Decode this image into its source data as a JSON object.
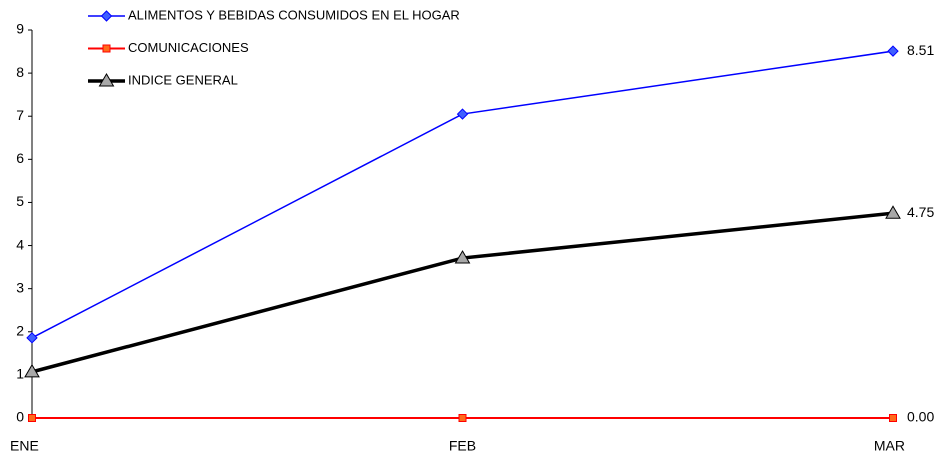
{
  "chart_data": {
    "type": "line",
    "categories": [
      "ENE",
      "FEB",
      "MAR"
    ],
    "series": [
      {
        "name": "ALIMENTOS Y BEBIDAS CONSUMIDOS EN EL HOGAR",
        "color": "#0000ff",
        "marker": "diamond",
        "values": [
          1.86,
          7.05,
          8.51
        ],
        "value_labels": [
          null,
          null,
          "8.51"
        ]
      },
      {
        "name": "COMUNICACIONES",
        "color": "#ff0000",
        "marker": "square",
        "values": [
          0,
          0,
          0
        ],
        "value_labels": [
          null,
          null,
          "0.00"
        ]
      },
      {
        "name": "INDICE GENERAL",
        "color": "#000000",
        "marker": "triangle",
        "values": [
          1.07,
          3.71,
          4.75
        ],
        "value_labels": [
          null,
          null,
          "4.75"
        ]
      }
    ],
    "ylim": [
      0,
      9
    ],
    "yticks": [
      0,
      1,
      2,
      3,
      4,
      5,
      6,
      7,
      8,
      9
    ],
    "grid": false,
    "legend": "top-left"
  }
}
